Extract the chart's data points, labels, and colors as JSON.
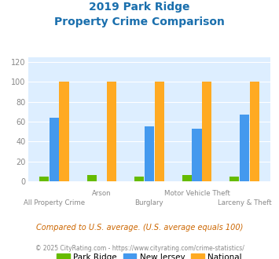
{
  "title_line1": "2019 Park Ridge",
  "title_line2": "Property Crime Comparison",
  "title_color": "#1a6fad",
  "categories": [
    "All Property Crime",
    "Arson",
    "Burglary",
    "Motor Vehicle Theft",
    "Larceny & Theft"
  ],
  "park_ridge": [
    5,
    6,
    5,
    6,
    5
  ],
  "new_jersey": [
    64,
    0,
    55,
    53,
    67
  ],
  "national": [
    100,
    100,
    100,
    100,
    100
  ],
  "color_park_ridge": "#66bb00",
  "color_nj": "#4499ee",
  "color_national": "#ffaa22",
  "ylabel_ticks": [
    0,
    20,
    40,
    60,
    80,
    100,
    120
  ],
  "ylim": [
    0,
    125
  ],
  "bg_color": "#ddeeff",
  "legend_labels": [
    "Park Ridge",
    "New Jersey",
    "National"
  ],
  "footnote1": "Compared to U.S. average. (U.S. average equals 100)",
  "footnote2": "© 2025 CityRating.com - https://www.cityrating.com/crime-statistics/",
  "footnote1_color": "#cc6600",
  "footnote2_color": "#888888",
  "xticklabel_color": "#888888",
  "row1_labels": [
    "All Property Crime",
    "",
    "Burglary",
    "",
    "Larceny & Theft"
  ],
  "row2_labels": [
    "",
    "Arson",
    "",
    "Motor Vehicle Theft",
    ""
  ]
}
